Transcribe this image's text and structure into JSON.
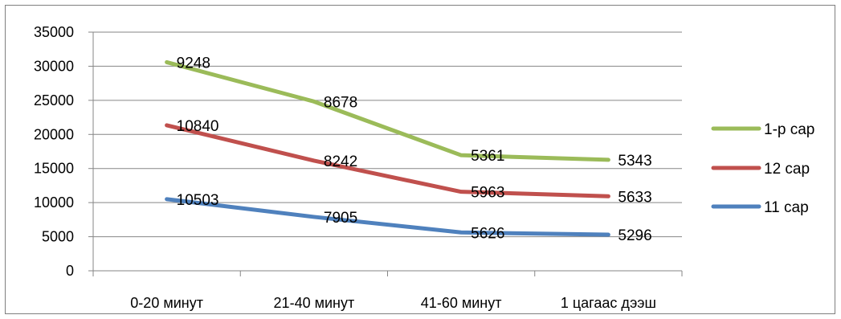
{
  "chart_data": {
    "type": "line",
    "stacked": true,
    "categories": [
      "0-20 минут",
      "21-40 минут",
      "41-60 минут",
      "1 цагаас дээш"
    ],
    "ylim": [
      0,
      35000
    ],
    "yticks": [
      0,
      5000,
      10000,
      15000,
      20000,
      25000,
      30000,
      35000
    ],
    "grid": true,
    "legend_position": "right",
    "series": [
      {
        "name": "11 сар",
        "color": "#4f81bd",
        "values": [
          10503,
          7905,
          5626,
          5296
        ]
      },
      {
        "name": "12 сар",
        "color": "#c0504d",
        "values": [
          10840,
          8242,
          5963,
          5633
        ]
      },
      {
        "name": "1-р сар",
        "color": "#9bbb59",
        "values": [
          9248,
          8678,
          5361,
          5343
        ]
      }
    ],
    "legend_order": [
      "1-р сар",
      "12 сар",
      "11 сар"
    ]
  }
}
